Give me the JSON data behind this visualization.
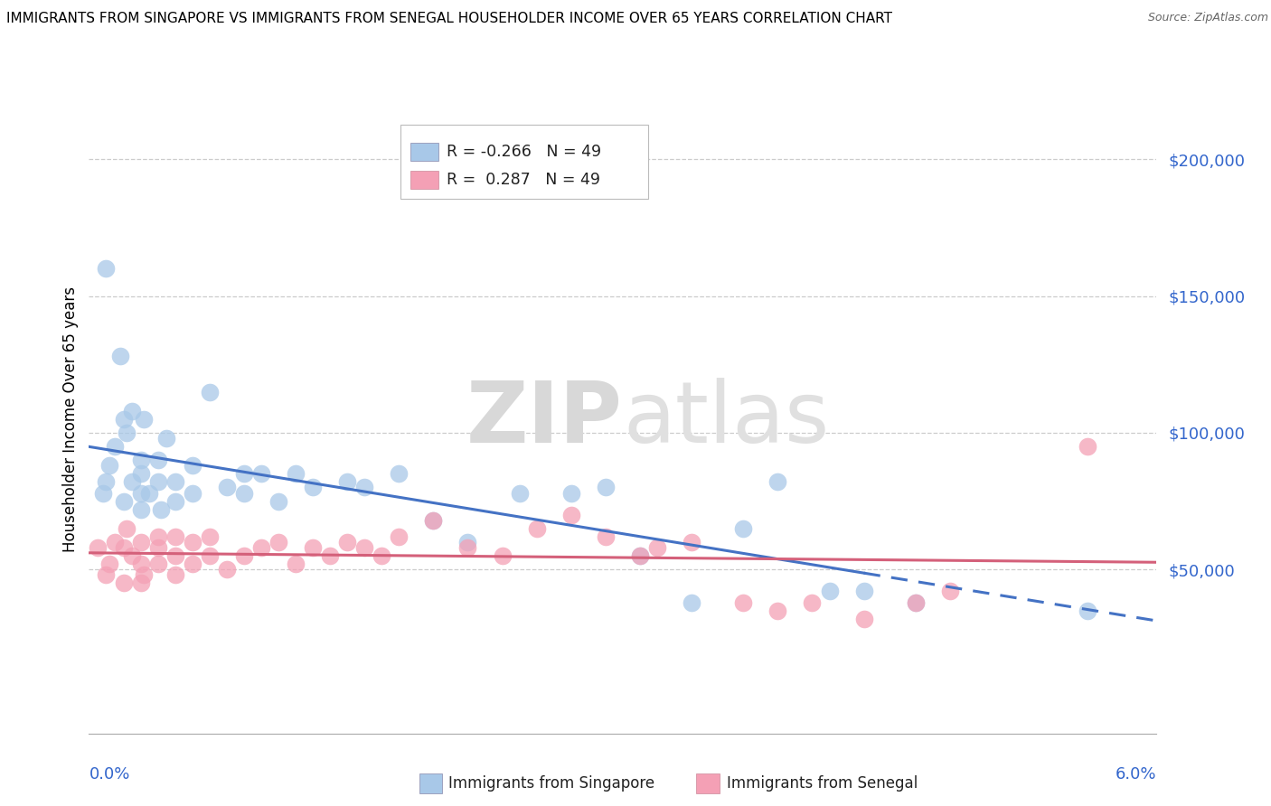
{
  "title": "IMMIGRANTS FROM SINGAPORE VS IMMIGRANTS FROM SENEGAL HOUSEHOLDER INCOME OVER 65 YEARS CORRELATION CHART",
  "source": "Source: ZipAtlas.com",
  "ylabel": "Householder Income Over 65 years",
  "xlim": [
    0.0,
    0.062
  ],
  "ylim": [
    -10000,
    220000
  ],
  "yticks": [
    0,
    50000,
    100000,
    150000,
    200000
  ],
  "ytick_labels": [
    "",
    "$50,000",
    "$100,000",
    "$150,000",
    "$200,000"
  ],
  "legend_r_singapore": "-0.266",
  "legend_r_senegal": " 0.287",
  "legend_n": "49",
  "color_singapore": "#a8c8e8",
  "color_senegal": "#f4a0b5",
  "line_color_singapore": "#4472c4",
  "line_color_senegal": "#d4607a",
  "watermark_zip": "ZIP",
  "watermark_atlas": "atlas",
  "sg_x": [
    0.0008,
    0.001,
    0.001,
    0.0012,
    0.0015,
    0.0018,
    0.002,
    0.002,
    0.0022,
    0.0025,
    0.0025,
    0.003,
    0.003,
    0.003,
    0.003,
    0.0032,
    0.0035,
    0.004,
    0.004,
    0.0042,
    0.0045,
    0.005,
    0.005,
    0.006,
    0.006,
    0.007,
    0.008,
    0.009,
    0.009,
    0.01,
    0.011,
    0.012,
    0.013,
    0.015,
    0.016,
    0.018,
    0.02,
    0.022,
    0.025,
    0.028,
    0.03,
    0.032,
    0.035,
    0.038,
    0.04,
    0.043,
    0.045,
    0.048,
    0.058
  ],
  "sg_y": [
    78000,
    82000,
    160000,
    88000,
    95000,
    128000,
    75000,
    105000,
    100000,
    82000,
    108000,
    72000,
    78000,
    85000,
    90000,
    105000,
    78000,
    82000,
    90000,
    72000,
    98000,
    75000,
    82000,
    78000,
    88000,
    115000,
    80000,
    78000,
    85000,
    85000,
    75000,
    85000,
    80000,
    82000,
    80000,
    85000,
    68000,
    60000,
    78000,
    78000,
    80000,
    55000,
    38000,
    65000,
    82000,
    42000,
    42000,
    38000,
    35000
  ],
  "sn_x": [
    0.0005,
    0.001,
    0.0012,
    0.0015,
    0.002,
    0.002,
    0.0022,
    0.0025,
    0.003,
    0.003,
    0.003,
    0.0032,
    0.004,
    0.004,
    0.004,
    0.005,
    0.005,
    0.005,
    0.006,
    0.006,
    0.007,
    0.007,
    0.008,
    0.009,
    0.01,
    0.011,
    0.012,
    0.013,
    0.014,
    0.015,
    0.016,
    0.017,
    0.018,
    0.02,
    0.022,
    0.024,
    0.026,
    0.028,
    0.03,
    0.032,
    0.033,
    0.035,
    0.038,
    0.04,
    0.042,
    0.045,
    0.048,
    0.05,
    0.058
  ],
  "sn_y": [
    58000,
    48000,
    52000,
    60000,
    45000,
    58000,
    65000,
    55000,
    45000,
    52000,
    60000,
    48000,
    52000,
    58000,
    62000,
    48000,
    55000,
    62000,
    52000,
    60000,
    55000,
    62000,
    50000,
    55000,
    58000,
    60000,
    52000,
    58000,
    55000,
    60000,
    58000,
    55000,
    62000,
    68000,
    58000,
    55000,
    65000,
    70000,
    62000,
    55000,
    58000,
    60000,
    38000,
    35000,
    38000,
    32000,
    38000,
    42000,
    95000
  ]
}
